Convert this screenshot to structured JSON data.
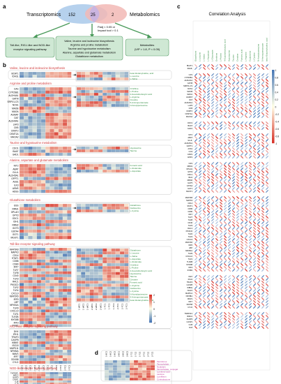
{
  "panels": {
    "a": {
      "letter": "a",
      "left_label": "Transcriptomics",
      "right_label": "Metabolomics",
      "counts": [
        "152",
        "25",
        "2"
      ],
      "threshold": [
        "Padj < 0.05 or",
        "Impact tool > 0.1"
      ],
      "boxes": [
        [
          "Toll-like, RIG-I-like and NOD-like",
          "receptor signaling pathway"
        ],
        [
          "Valine, leucine and isoleucine biosynthesis",
          "Arginine and proline metabolism",
          "Taurine and hypotaurine metabolism",
          "Alanine, aspartate and glutamate metabolism",
          "Glutathione metabolism"
        ],
        [
          "Metabolites",
          "(VIP > 1.8, P < 0.05)"
        ]
      ]
    },
    "b": {
      "letter": "b",
      "sections": [
        {
          "title": "Valine, leucine and isoleucine biosynthesis",
          "genes": [
            "BCAT1",
            "IDH3L"
          ],
          "metabolites": [
            "beta-Glutamylvaline, acid",
            "L-Leucine",
            "L-Valine"
          ]
        },
        {
          "title": "Arginine and proline metabolism",
          "genes": [
            "CAS",
            "CYP26B1",
            "ALDH4A1",
            "GATM",
            "SRPX1-CS",
            "NOS1",
            "MAOB",
            "MAOA",
            "AGMAT",
            "OAT",
            "ALDH9A1",
            "LAP3",
            "CKB",
            "CKMT2",
            "CKMT1A",
            "MAOA2"
          ],
          "metabolites": [
            "Ornithine",
            "L-Proline",
            "4-Guanidinobutyric acid",
            "L-Arginine",
            "Creatine",
            "5-Aminopentanoate",
            "N-Acetylputrescine"
          ]
        },
        {
          "title": "Taurine and hypotaurine metabolism",
          "genes": [
            "CDO1",
            "BAAT",
            "GAD1"
          ],
          "metabolites": [
            "Hypotaurine",
            "Taurine"
          ]
        },
        {
          "title": "Alanine, aspartate and glutamate metabolism",
          "genes": [
            "NIT2",
            "ABAT",
            "GLUL",
            "ALDH5A1",
            "GFPT1",
            "ASS1",
            "ILK3",
            "ASNS",
            "ADSS"
          ],
          "metabolites": [
            "Fumaric acid",
            "L-Glutamate",
            "L-Aspartate"
          ]
        },
        {
          "title": "Glutathione metabolism",
          "genes": [
            "GSS",
            "RRM1",
            "OPLAH",
            "GPX3",
            "ODC1",
            "IDH1",
            "RRM2",
            "GGT5",
            "GSTA4",
            "GGT1",
            "MGST1"
          ],
          "metabolites": [
            "Glutathione",
            "Cadaverine",
            "L-Cystine"
          ]
        },
        {
          "title": "Toll-like receptor signaling pathway",
          "genes": [
            "MAP3K8",
            "MAPK3",
            "CD14",
            "STAT1",
            "CD86",
            "CD80",
            "IRF7",
            "TLR7",
            "TLR8",
            "CD40",
            "TLR3",
            "RAC1",
            "PIK3CD",
            "TLR2",
            "TLR4",
            "CXCL9",
            "MAP2K6",
            "IRF5",
            "LBP",
            "NFKB1A",
            "TLR9",
            "CXCL10",
            "TLR1",
            "TLR2B",
            "MYD88",
            "IRF3",
            "IFNB1"
          ],
          "metabolites": [
            "Glutathione",
            "L-Leucine",
            "L-Valine",
            "L-Aspartate",
            "L-Glutamate",
            "Ornithine",
            "L-Proline",
            "4-Guanidinobutyric acid",
            "Hypotaurine",
            "Taurine",
            "Creatine",
            "Fumaric acid",
            "L-Arginine",
            "Cadaverine",
            "L-Cystine",
            "N-Acetylputrescine",
            "5-Aminopentanoate",
            "beta-Glutamylvaline, acid"
          ]
        },
        {
          "title": "RIG-I-like receptor signaling pathway",
          "genes": [
            "DHX",
            "IFIH1",
            "TRAF3",
            "CASP8",
            "IKBKE",
            "ISG15",
            "MAPK11",
            "NFKBIA",
            "MAVS",
            "IRF7",
            "DDX58",
            "CYLD"
          ],
          "metabolites": []
        },
        {
          "title": "NOD-like receptor signaling pathway",
          "genes": [
            "TNFRSF1",
            "BIRC2",
            "NLRP3",
            "CASP1",
            "IL1B",
            "IL18"
          ],
          "metabolites": []
        }
      ],
      "samples": [
        "1-WC1",
        "1-WC2",
        "1-WC3",
        "2-WC1",
        "2-WC2",
        "2-WC3",
        "1-TC1",
        "1-TC2",
        "1-TC3",
        "2-TC1",
        "2-TC2",
        "2-TC3"
      ],
      "colorbar_ticks": [
        "2",
        "1",
        "0",
        "-1",
        "-2"
      ]
    },
    "c": {
      "letter": "c",
      "title": "Correlation Analysis",
      "colorbar_ticks": [
        "1",
        "0.8",
        "0.6",
        "0.4",
        "0.2",
        "0",
        "-0.2",
        "-0.4",
        "-0.6",
        "-0.8",
        "-1"
      ]
    },
    "d": {
      "letter": "d",
      "samples": [
        "1-WC1",
        "1-WC2",
        "1-WC3",
        "2-WC1",
        "2-WC2",
        "2-WC3",
        "1-TC1",
        "1-TC2",
        "1-TC3",
        "2-TC1",
        "2-TC2",
        "2-TC3"
      ],
      "labels": [
        "Tacrolimus",
        "Taurocholate",
        "Nodularin",
        "Taurocholate, conjugat",
        "Lumiterol acid",
        "Lactone",
        "Lumiflavin",
        "Cortisolactone"
      ]
    }
  },
  "colors": {
    "venn_left": "#a9c9ea",
    "venn_right": "#f2b8b5",
    "venn_overlap": "#c7b3e2",
    "box_fill": "#cfe8d4",
    "box_stroke": "#5aa06a",
    "arrow": "#4a9a5a",
    "label_green": "#2e8b3e",
    "label_red": "#d23a3a",
    "label_magenta": "#c0369c",
    "heat_red": "#d73027",
    "heat_blue": "#4575b4"
  }
}
